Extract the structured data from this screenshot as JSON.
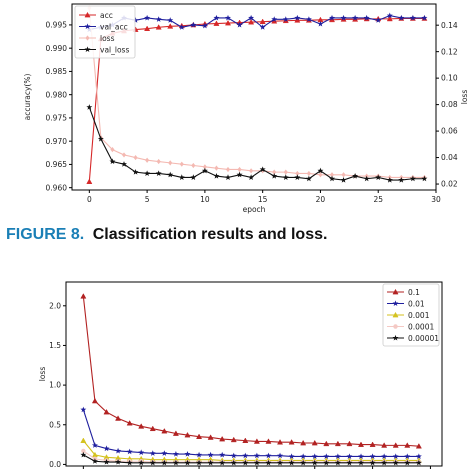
{
  "figure8_caption": {
    "label": "FIGURE 8.",
    "text": "Classification results and loss."
  },
  "chart_data": [
    {
      "type": "line",
      "title": "",
      "xlabel": "epoch",
      "ylabel": "accuracy(%)",
      "y2label": "loss",
      "xlim": [
        -1.5,
        30
      ],
      "ylim": [
        0.9595,
        0.9995
      ],
      "y2lim": [
        0.0155,
        0.156
      ],
      "xticks": [
        0,
        5,
        10,
        15,
        20,
        25,
        30
      ],
      "yticks": [
        0.96,
        0.965,
        0.97,
        0.975,
        0.98,
        0.985,
        0.99,
        0.995
      ],
      "y2ticks": [
        0.02,
        0.04,
        0.06,
        0.08,
        0.1,
        0.12,
        0.14
      ],
      "grid": false,
      "legend": "top-left",
      "x": [
        0,
        1,
        2,
        3,
        4,
        5,
        6,
        7,
        8,
        9,
        10,
        11,
        12,
        13,
        14,
        15,
        16,
        17,
        18,
        19,
        20,
        21,
        22,
        23,
        24,
        25,
        26,
        27,
        28,
        29
      ],
      "series": [
        {
          "name": "acc",
          "axis": "left",
          "color": "#d62728",
          "marker": "triangle",
          "values": [
            0.9613,
            0.992,
            0.9932,
            0.9937,
            0.994,
            0.9942,
            0.9945,
            0.9947,
            0.9948,
            0.995,
            0.9952,
            0.9953,
            0.9954,
            0.9955,
            0.9956,
            0.9957,
            0.9958,
            0.9959,
            0.996,
            0.996,
            0.9961,
            0.9961,
            0.9962,
            0.9962,
            0.9963,
            0.9963,
            0.9963,
            0.9964,
            0.9964,
            0.9964
          ]
        },
        {
          "name": "val_acc",
          "axis": "left",
          "color": "#1f1f9e",
          "marker": "star",
          "values": [
            0.994,
            0.9945,
            0.995,
            0.9965,
            0.996,
            0.9965,
            0.9962,
            0.996,
            0.9945,
            0.995,
            0.9948,
            0.9965,
            0.9965,
            0.995,
            0.9965,
            0.9945,
            0.9962,
            0.9962,
            0.9965,
            0.9962,
            0.9952,
            0.9965,
            0.9965,
            0.9965,
            0.9965,
            0.996,
            0.997,
            0.9965,
            0.9965,
            0.9965
          ]
        },
        {
          "name": "loss",
          "axis": "right",
          "color": "#f4b9b2",
          "marker": "diamond",
          "values": [
            0.153,
            0.055,
            0.046,
            0.042,
            0.04,
            0.038,
            0.037,
            0.036,
            0.035,
            0.034,
            0.033,
            0.032,
            0.031,
            0.031,
            0.03,
            0.03,
            0.029,
            0.029,
            0.028,
            0.028,
            0.027,
            0.027,
            0.027,
            0.026,
            0.026,
            0.026,
            0.025,
            0.025,
            0.025,
            0.025
          ]
        },
        {
          "name": "val_loss",
          "axis": "right",
          "color": "#111111",
          "marker": "star",
          "values": [
            0.078,
            0.054,
            0.037,
            0.035,
            0.029,
            0.028,
            0.028,
            0.027,
            0.025,
            0.025,
            0.03,
            0.026,
            0.025,
            0.027,
            0.025,
            0.031,
            0.026,
            0.025,
            0.025,
            0.024,
            0.03,
            0.024,
            0.023,
            0.026,
            0.024,
            0.025,
            0.023,
            0.023,
            0.024,
            0.024
          ]
        }
      ]
    },
    {
      "type": "line",
      "title": "",
      "xlabel": "",
      "ylabel": "loss",
      "xlim": [
        -1.5,
        31
      ],
      "ylim": [
        -0.02,
        2.3
      ],
      "yticks": [
        0.0,
        0.5,
        1.0,
        1.5,
        2.0
      ],
      "ytick_labels": [
        "0.0",
        "0.5",
        "1.0",
        "1.5",
        "2.0"
      ],
      "grid": false,
      "legend": "top-right",
      "x": [
        0,
        1,
        2,
        3,
        4,
        5,
        6,
        7,
        8,
        9,
        10,
        11,
        12,
        13,
        14,
        15,
        16,
        17,
        18,
        19,
        20,
        21,
        22,
        23,
        24,
        25,
        26,
        27,
        28,
        29
      ],
      "series": [
        {
          "name": "0.1",
          "color": "#b22222",
          "marker": "triangle",
          "values": [
            2.12,
            0.8,
            0.66,
            0.58,
            0.52,
            0.48,
            0.45,
            0.42,
            0.39,
            0.37,
            0.35,
            0.34,
            0.32,
            0.31,
            0.3,
            0.29,
            0.29,
            0.28,
            0.28,
            0.27,
            0.27,
            0.26,
            0.26,
            0.26,
            0.25,
            0.25,
            0.24,
            0.24,
            0.24,
            0.23
          ]
        },
        {
          "name": "0.01",
          "color": "#1f1f9e",
          "marker": "star",
          "values": [
            0.69,
            0.24,
            0.2,
            0.17,
            0.16,
            0.15,
            0.14,
            0.14,
            0.13,
            0.13,
            0.12,
            0.12,
            0.12,
            0.11,
            0.11,
            0.11,
            0.11,
            0.11,
            0.1,
            0.1,
            0.1,
            0.1,
            0.1,
            0.1,
            0.1,
            0.1,
            0.1,
            0.1,
            0.1,
            0.1
          ]
        },
        {
          "name": "0.001",
          "color": "#d4c21f",
          "marker": "triangle",
          "values": [
            0.3,
            0.12,
            0.09,
            0.08,
            0.07,
            0.07,
            0.06,
            0.06,
            0.06,
            0.06,
            0.06,
            0.06,
            0.05,
            0.05,
            0.05,
            0.05,
            0.05,
            0.05,
            0.05,
            0.05,
            0.05,
            0.05,
            0.05,
            0.05,
            0.05,
            0.05,
            0.05,
            0.05,
            0.05,
            0.05
          ]
        },
        {
          "name": "0.0001",
          "color": "#f4c9c4",
          "marker": "circle",
          "values": [
            0.17,
            0.07,
            0.05,
            0.04,
            0.04,
            0.04,
            0.03,
            0.03,
            0.03,
            0.03,
            0.03,
            0.03,
            0.03,
            0.03,
            0.03,
            0.03,
            0.03,
            0.03,
            0.03,
            0.03,
            0.03,
            0.03,
            0.03,
            0.03,
            0.03,
            0.03,
            0.03,
            0.03,
            0.03,
            0.03
          ]
        },
        {
          "name": "0.00001",
          "color": "#111111",
          "marker": "star",
          "values": [
            0.12,
            0.04,
            0.03,
            0.03,
            0.02,
            0.02,
            0.02,
            0.02,
            0.02,
            0.02,
            0.02,
            0.02,
            0.02,
            0.02,
            0.02,
            0.02,
            0.02,
            0.02,
            0.02,
            0.02,
            0.02,
            0.02,
            0.02,
            0.02,
            0.02,
            0.02,
            0.02,
            0.02,
            0.02,
            0.02
          ]
        }
      ]
    }
  ]
}
